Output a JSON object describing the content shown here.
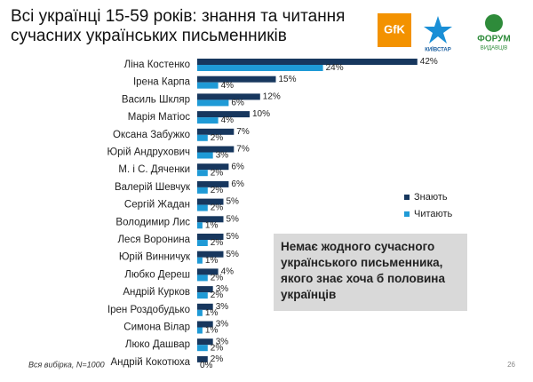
{
  "chart_data": {
    "type": "hbar",
    "title": "Всі українці 15-59 років: знання та читання сучасних українських письменників",
    "categories": [
      "Ліна Костенко",
      "Ірена Карпа",
      "Василь Шкляр",
      "Марія Матіос",
      "Оксана Забужко",
      "Юрій Андрухович",
      "М. і С. Дяченки",
      "Валерій Шевчук",
      "Сергій Жадан",
      "Володимир Лис",
      "Леся Воронина",
      "Юрій Винничук",
      "Любко Дереш",
      "Андрій Курков",
      "Ірен Роздобудько",
      "Симона Вілар",
      "Люко Дашвар",
      "Андрій Кокотюха"
    ],
    "series": [
      {
        "name": "Знають",
        "color": "#17375e",
        "values": [
          42,
          15,
          12,
          10,
          7,
          7,
          6,
          6,
          5,
          5,
          5,
          5,
          4,
          3,
          3,
          3,
          3,
          2
        ],
        "value_labels": [
          "42%",
          "15%",
          "12%",
          "10%",
          "7%",
          "7%",
          "6%",
          "6%",
          "5%",
          "5%",
          "5%",
          "5%",
          "4%",
          "3%",
          "3%",
          "3%",
          "3%",
          "2%"
        ]
      },
      {
        "name": "Читають",
        "color": "#1f9ad6",
        "values": [
          24,
          4,
          6,
          4,
          2,
          3,
          2,
          2,
          2,
          1,
          2,
          1,
          2,
          2,
          1,
          1,
          2,
          0
        ],
        "value_labels": [
          "24%",
          "4%",
          "6%",
          "4%",
          "2%",
          "3%",
          "2%",
          "2%",
          "2%",
          "1%",
          "2%",
          "1%",
          "2%",
          "2%",
          "1%",
          "1%",
          "2%",
          "0%"
        ]
      }
    ],
    "annotation": "Немає жодного сучасного українського письменника, якого знає хоча б половина українців",
    "footnote": "Вся вибірка, N=1000",
    "legend": "right"
  },
  "logos": [
    "GfK",
    "КИЇВСТАР",
    "ФОРУМ",
    "ВИДАВЦІВ"
  ],
  "page_number": "26"
}
